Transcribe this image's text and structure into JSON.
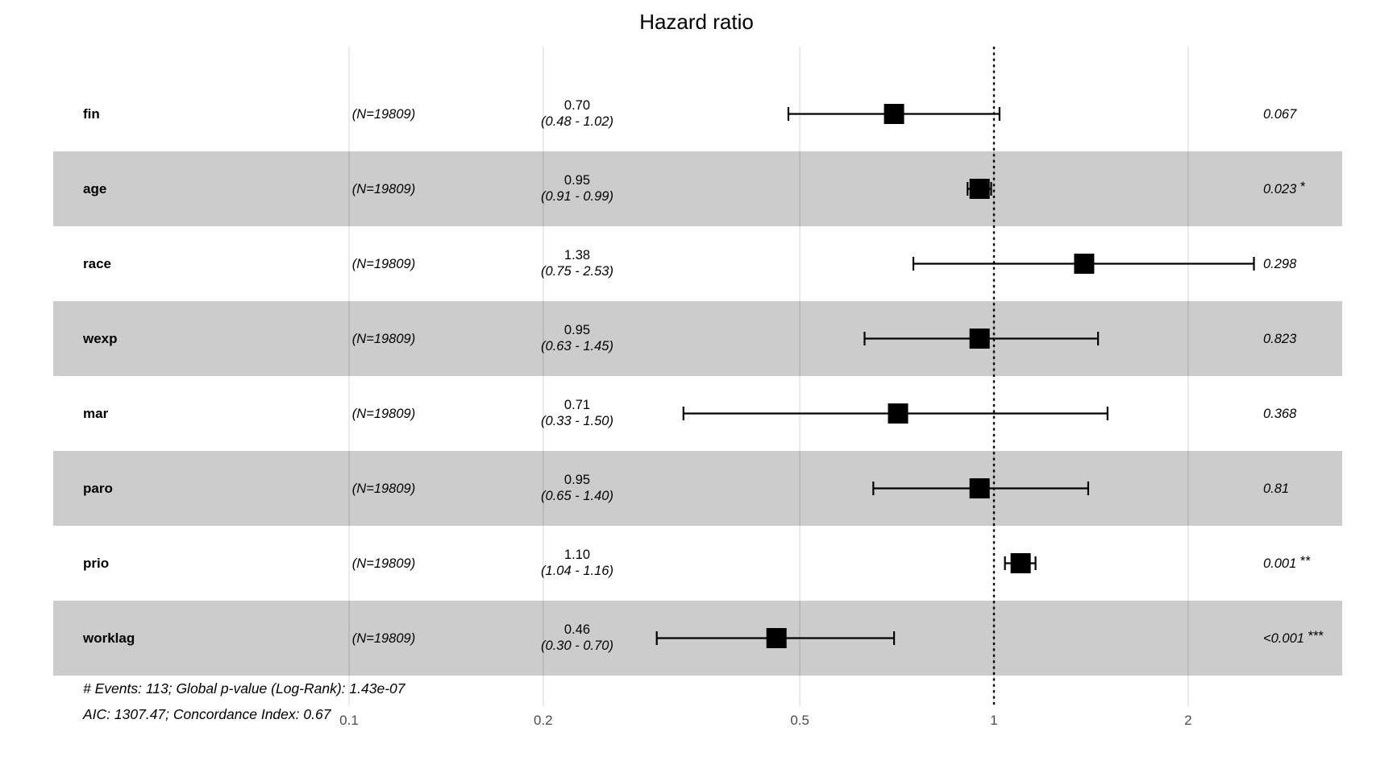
{
  "title": "Hazard ratio",
  "colors": {
    "band": "#cccccc",
    "grid": "rgba(0,0,0,0.11)",
    "marker": "#000000",
    "axis_text": "#4d4d4d",
    "text": "#000000",
    "background": "#ffffff"
  },
  "chart_data": {
    "type": "forest",
    "title": "Hazard ratio",
    "x_scale": "log10",
    "x_ticks": [
      0.1,
      0.2,
      0.5,
      1,
      2
    ],
    "x_tick_labels": [
      "0.1",
      "0.2",
      "0.5",
      "1",
      "2"
    ],
    "reference_line": 1,
    "rows": [
      {
        "label": "fin",
        "n": "(N=19809)",
        "hr": 0.7,
        "lo": 0.48,
        "hi": 1.02,
        "hr_label": "0.70",
        "ci_label": "(0.48 - 1.02)",
        "p": "0.067",
        "stars": "",
        "shaded": false
      },
      {
        "label": "age",
        "n": "(N=19809)",
        "hr": 0.95,
        "lo": 0.91,
        "hi": 0.99,
        "hr_label": "0.95",
        "ci_label": "(0.91 - 0.99)",
        "p": "0.023",
        "stars": "*",
        "shaded": true
      },
      {
        "label": "race",
        "n": "(N=19809)",
        "hr": 1.38,
        "lo": 0.75,
        "hi": 2.53,
        "hr_label": "1.38",
        "ci_label": "(0.75 - 2.53)",
        "p": "0.298",
        "stars": "",
        "shaded": false
      },
      {
        "label": "wexp",
        "n": "(N=19809)",
        "hr": 0.95,
        "lo": 0.63,
        "hi": 1.45,
        "hr_label": "0.95",
        "ci_label": "(0.63 - 1.45)",
        "p": "0.823",
        "stars": "",
        "shaded": true
      },
      {
        "label": "mar",
        "n": "(N=19809)",
        "hr": 0.71,
        "lo": 0.33,
        "hi": 1.5,
        "hr_label": "0.71",
        "ci_label": "(0.33 - 1.50)",
        "p": "0.368",
        "stars": "",
        "shaded": false
      },
      {
        "label": "paro",
        "n": "(N=19809)",
        "hr": 0.95,
        "lo": 0.65,
        "hi": 1.4,
        "hr_label": "0.95",
        "ci_label": "(0.65 - 1.40)",
        "p": "0.81",
        "stars": "",
        "shaded": true
      },
      {
        "label": "prio",
        "n": "(N=19809)",
        "hr": 1.1,
        "lo": 1.04,
        "hi": 1.16,
        "hr_label": "1.10",
        "ci_label": "(1.04 - 1.16)",
        "p": "0.001",
        "stars": "**",
        "shaded": false
      },
      {
        "label": "worklag",
        "n": "(N=19809)",
        "hr": 0.46,
        "lo": 0.3,
        "hi": 0.7,
        "hr_label": "0.46",
        "ci_label": "(0.30 - 0.70)",
        "p": "<0.001",
        "stars": "***",
        "shaded": true
      }
    ],
    "footer": [
      "# Events: 113; Global p-value (Log-Rank): 1.43e-07",
      "AIC: 1307.47; Concordance Index: 0.67"
    ]
  }
}
